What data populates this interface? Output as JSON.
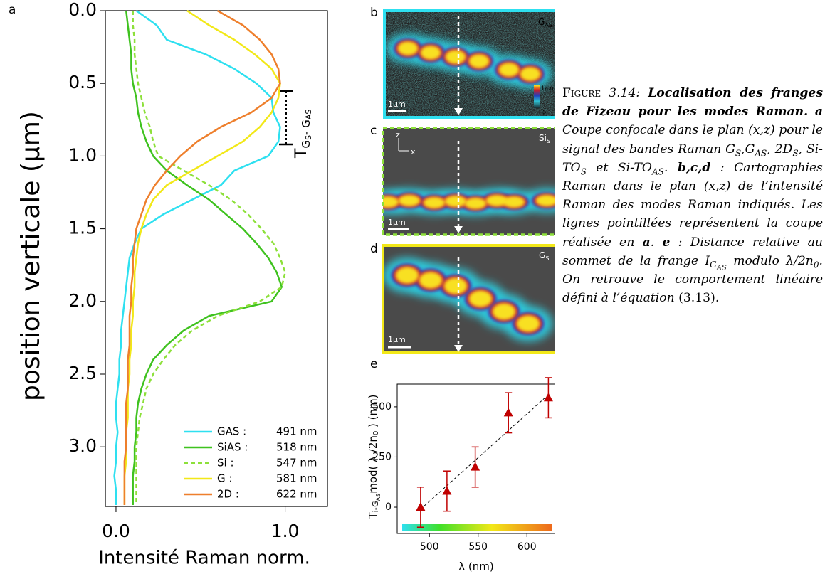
{
  "panel_labels": {
    "a": "a",
    "b": "b",
    "c": "c",
    "d": "d",
    "e": "e"
  },
  "chart_data": [
    {
      "type": "line",
      "xlabel": "Intensité Raman norm.",
      "ylabel": "position verticale (μm)",
      "annotation": [
        "T",
        "G",
        "S",
        "- G",
        "AS"
      ],
      "xlim": [
        -0.063,
        1.25
      ],
      "ylim": [
        0,
        3.41
      ],
      "y_inverted": true,
      "xticks": [
        {
          "value": 0,
          "label": "0.0"
        },
        {
          "value": 1,
          "label": "1.0"
        }
      ],
      "yticks": [
        {
          "value": 0,
          "label": "0.0"
        },
        {
          "value": 0.5,
          "label": "0.5"
        },
        {
          "value": 1,
          "label": "1.0"
        },
        {
          "value": 1.5,
          "label": "1.5"
        },
        {
          "value": 2,
          "label": "2.0"
        },
        {
          "value": 2.5,
          "label": "2.5"
        },
        {
          "value": 3,
          "label": "3.0"
        }
      ],
      "legend": "lower right",
      "y": [
        0,
        0.1,
        0.2,
        0.3,
        0.4,
        0.5,
        0.6,
        0.7,
        0.8,
        0.9,
        1,
        1.1,
        1.2,
        1.3,
        1.4,
        1.5,
        1.6,
        1.7,
        1.8,
        1.9,
        2,
        2.1,
        2.2,
        2.3,
        2.4,
        2.5,
        2.6,
        2.7,
        2.8,
        2.9,
        3,
        3.1,
        3.2,
        3.3,
        3.4
      ],
      "series": [
        {
          "name": "GAS :",
          "wavelength": "491 nm",
          "color": "#2ee0f0",
          "dashed": false,
          "values": [
            0.12,
            0.24,
            0.3,
            0.53,
            0.7,
            0.83,
            0.92,
            0.93,
            0.97,
            0.96,
            0.9,
            0.7,
            0.62,
            0.45,
            0.28,
            0.15,
            0.11,
            0.08,
            0.07,
            0.06,
            0.05,
            0.04,
            0.03,
            0.03,
            0.02,
            0.02,
            0.01,
            0.0,
            0.0,
            0.01,
            0.0,
            0.0,
            -0.01,
            0.0,
            0.0
          ]
        },
        {
          "name": "SiAS :",
          "wavelength": "518 nm",
          "color": "#3fc21f",
          "dashed": false,
          "values": [
            0.06,
            0.07,
            0.08,
            0.09,
            0.09,
            0.1,
            0.12,
            0.13,
            0.15,
            0.18,
            0.22,
            0.3,
            0.42,
            0.55,
            0.65,
            0.75,
            0.83,
            0.9,
            0.95,
            0.98,
            0.92,
            0.55,
            0.4,
            0.3,
            0.22,
            0.18,
            0.15,
            0.13,
            0.12,
            0.12,
            0.11,
            0.11,
            0.1,
            0.1,
            0.1
          ]
        },
        {
          "name": "Si :",
          "wavelength": "547 nm",
          "color": "#8de03a",
          "dashed": true,
          "values": [
            0.1,
            0.1,
            0.11,
            0.11,
            0.12,
            0.13,
            0.15,
            0.17,
            0.2,
            0.22,
            0.25,
            0.4,
            0.55,
            0.68,
            0.78,
            0.86,
            0.93,
            0.97,
            1.0,
            0.98,
            0.85,
            0.6,
            0.45,
            0.35,
            0.28,
            0.22,
            0.18,
            0.16,
            0.14,
            0.13,
            0.12,
            0.12,
            0.12,
            0.12,
            0.12
          ]
        },
        {
          "name": "G :",
          "wavelength": "581 nm",
          "color": "#f2e818",
          "dashed": false,
          "values": [
            0.42,
            0.55,
            0.7,
            0.82,
            0.92,
            0.97,
            0.96,
            0.92,
            0.85,
            0.75,
            0.6,
            0.45,
            0.3,
            0.22,
            0.18,
            0.15,
            0.13,
            0.12,
            0.11,
            0.11,
            0.1,
            0.1,
            0.09,
            0.09,
            0.08,
            0.08,
            0.07,
            0.07,
            0.07,
            0.06,
            0.06,
            0.06,
            0.05,
            0.05,
            0.05
          ]
        },
        {
          "name": "2D :",
          "wavelength": "622 nm",
          "color": "#ee7f2c",
          "dashed": false,
          "values": [
            0.6,
            0.75,
            0.85,
            0.92,
            0.96,
            0.97,
            0.92,
            0.8,
            0.62,
            0.48,
            0.38,
            0.3,
            0.23,
            0.18,
            0.15,
            0.12,
            0.11,
            0.1,
            0.1,
            0.09,
            0.09,
            0.08,
            0.08,
            0.08,
            0.07,
            0.07,
            0.07,
            0.06,
            0.06,
            0.06,
            0.06,
            0.05,
            0.05,
            0.05,
            0.05
          ]
        }
      ]
    },
    {
      "type": "scatter",
      "xlabel": "λ (nm)",
      "ylabel": [
        "T",
        "i-G",
        "AS",
        "mod( λ /2n",
        "0",
        " ) (nm)"
      ],
      "xlim": [
        467,
        629
      ],
      "ylim": [
        -131,
        613
      ],
      "xticks": [
        500,
        550,
        600
      ],
      "yticks": [
        0,
        250,
        500
      ],
      "color": "#c00000",
      "marker": "triangle",
      "x": [
        491,
        518,
        547,
        581,
        622
      ],
      "values": [
        0,
        80,
        200,
        470,
        545
      ],
      "errors": [
        100,
        100,
        100,
        100,
        100
      ],
      "fit": {
        "x": [
          491,
          622
        ],
        "values": [
          -10,
          560
        ]
      }
    }
  ],
  "maps": [
    {
      "label": "G",
      "label_sub": "AS",
      "scale_bar": "1μm",
      "colorbar_max": "1a.u",
      "colorbar_min": "0"
    },
    {
      "label": "Si",
      "label_sub": "S",
      "scale_bar": "1μm",
      "axis_z": "z",
      "axis_x": "x"
    },
    {
      "label": "G",
      "label_sub": "S",
      "scale_bar": "1μm"
    }
  ],
  "caption": [
    "Figure",
    "3.14:",
    "Localisation des franges de Fizeau pour les modes Raman.",
    "a",
    "Coupe confocale dans le plan (x,z) pour le signal des bandes Raman G",
    "S",
    ",G",
    "AS",
    ", 2D",
    "S",
    ", Si-TO",
    "S",
    " et Si-TO",
    "AS",
    ".",
    "b,c,d",
    ": Cartographies Raman dans le plan (x,z) de l’intensité Raman des modes Raman indiqués. Les lignes pointillées représentent la coupe réalisée en",
    "a",
    ".",
    "e",
    ": Distance relative au sommet de la frange I",
    "G",
    "AS",
    " modulo λ/2n",
    "0",
    ". On retrouve le comportement linéaire défini à l’équation",
    "(3.13)",
    "."
  ]
}
